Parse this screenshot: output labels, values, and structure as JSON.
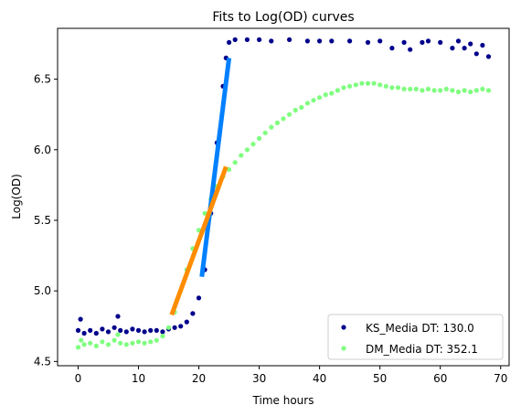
{
  "chart_data": {
    "type": "scatter",
    "title": "Fits to Log(OD) curves",
    "xlabel": "Time hours",
    "ylabel": "Log(OD)",
    "xlim": [
      -3.4,
      71.4
    ],
    "ylim": [
      4.47,
      6.86
    ],
    "x_ticks": [
      0,
      10,
      20,
      30,
      40,
      50,
      60,
      70
    ],
    "y_ticks": [
      4.5,
      5.0,
      5.5,
      6.0,
      6.5
    ],
    "x_tick_labels": [
      "0",
      "10",
      "20",
      "30",
      "40",
      "50",
      "60",
      "70"
    ],
    "y_tick_labels": [
      "4.5",
      "5.0",
      "5.5",
      "6.0",
      "6.5"
    ],
    "grid": false,
    "legend_position": "lower-right",
    "series": [
      {
        "name": "KS_Media DT: 130.0",
        "color": "#00008b",
        "marker": "dot",
        "points": [
          [
            0,
            4.72
          ],
          [
            0.4,
            4.8
          ],
          [
            1,
            4.7
          ],
          [
            2,
            4.72
          ],
          [
            3,
            4.7
          ],
          [
            4,
            4.73
          ],
          [
            5,
            4.71
          ],
          [
            6,
            4.74
          ],
          [
            6.6,
            4.82
          ],
          [
            7,
            4.72
          ],
          [
            8,
            4.71
          ],
          [
            9,
            4.73
          ],
          [
            10,
            4.72
          ],
          [
            11,
            4.71
          ],
          [
            12,
            4.72
          ],
          [
            13,
            4.72
          ],
          [
            14,
            4.71
          ],
          [
            15,
            4.73
          ],
          [
            16,
            4.74
          ],
          [
            17,
            4.75
          ],
          [
            18,
            4.78
          ],
          [
            19,
            4.84
          ],
          [
            20,
            4.95
          ],
          [
            21,
            5.15
          ],
          [
            22,
            5.55
          ],
          [
            23,
            6.05
          ],
          [
            24,
            6.45
          ],
          [
            24.5,
            6.65
          ],
          [
            25,
            6.76
          ],
          [
            26,
            6.78
          ],
          [
            28,
            6.78
          ],
          [
            30,
            6.78
          ],
          [
            32,
            6.77
          ],
          [
            35,
            6.78
          ],
          [
            38,
            6.77
          ],
          [
            40,
            6.77
          ],
          [
            42,
            6.77
          ],
          [
            45,
            6.77
          ],
          [
            48,
            6.76
          ],
          [
            50,
            6.77
          ],
          [
            52,
            6.72
          ],
          [
            54,
            6.76
          ],
          [
            55,
            6.71
          ],
          [
            57,
            6.76
          ],
          [
            58,
            6.77
          ],
          [
            60,
            6.76
          ],
          [
            62,
            6.72
          ],
          [
            63,
            6.77
          ],
          [
            64,
            6.72
          ],
          [
            65,
            6.75
          ],
          [
            66,
            6.68
          ],
          [
            67,
            6.74
          ],
          [
            68,
            6.66
          ]
        ]
      },
      {
        "name": "DM_Media DT: 352.1",
        "color": "#80ff80",
        "marker": "dot",
        "points": [
          [
            0,
            4.6
          ],
          [
            0.5,
            4.65
          ],
          [
            1,
            4.62
          ],
          [
            2,
            4.63
          ],
          [
            3,
            4.61
          ],
          [
            4,
            4.64
          ],
          [
            5,
            4.62
          ],
          [
            6,
            4.65
          ],
          [
            6.6,
            4.69
          ],
          [
            7,
            4.63
          ],
          [
            8,
            4.62
          ],
          [
            9,
            4.63
          ],
          [
            10,
            4.64
          ],
          [
            11,
            4.63
          ],
          [
            12,
            4.64
          ],
          [
            13,
            4.65
          ],
          [
            14,
            4.68
          ],
          [
            15,
            4.74
          ],
          [
            16,
            4.85
          ],
          [
            17,
            5.0
          ],
          [
            18,
            5.15
          ],
          [
            19,
            5.3
          ],
          [
            20,
            5.43
          ],
          [
            21,
            5.55
          ],
          [
            22,
            5.65
          ],
          [
            23,
            5.74
          ],
          [
            24,
            5.81
          ],
          [
            25,
            5.86
          ],
          [
            26,
            5.91
          ],
          [
            27,
            5.96
          ],
          [
            28,
            6.0
          ],
          [
            29,
            6.04
          ],
          [
            30,
            6.08
          ],
          [
            31,
            6.12
          ],
          [
            32,
            6.16
          ],
          [
            33,
            6.19
          ],
          [
            34,
            6.22
          ],
          [
            35,
            6.25
          ],
          [
            36,
            6.28
          ],
          [
            37,
            6.3
          ],
          [
            38,
            6.33
          ],
          [
            39,
            6.35
          ],
          [
            40,
            6.37
          ],
          [
            41,
            6.39
          ],
          [
            42,
            6.4
          ],
          [
            43,
            6.42
          ],
          [
            44,
            6.44
          ],
          [
            45,
            6.45
          ],
          [
            46,
            6.46
          ],
          [
            47,
            6.47
          ],
          [
            48,
            6.47
          ],
          [
            49,
            6.47
          ],
          [
            50,
            6.46
          ],
          [
            51,
            6.45
          ],
          [
            52,
            6.44
          ],
          [
            53,
            6.44
          ],
          [
            54,
            6.43
          ],
          [
            55,
            6.43
          ],
          [
            56,
            6.43
          ],
          [
            57,
            6.42
          ],
          [
            58,
            6.43
          ],
          [
            59,
            6.42
          ],
          [
            60,
            6.42
          ],
          [
            61,
            6.43
          ],
          [
            62,
            6.42
          ],
          [
            63,
            6.41
          ],
          [
            64,
            6.42
          ],
          [
            65,
            6.41
          ],
          [
            66,
            6.42
          ],
          [
            67,
            6.43
          ],
          [
            68,
            6.42
          ]
        ]
      }
    ],
    "fit_lines": [
      {
        "color": "#0080ff",
        "from": [
          20.5,
          5.1
        ],
        "to": [
          25.0,
          6.65
        ]
      },
      {
        "color": "#ff8c00",
        "from": [
          15.5,
          4.83
        ],
        "to": [
          24.5,
          5.88
        ]
      }
    ]
  }
}
